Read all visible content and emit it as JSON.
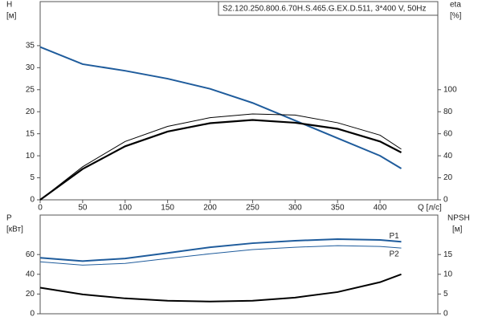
{
  "chart_data": [
    {
      "type": "line",
      "title": "S2.120.250.800.6.70H.S.465.G.EX.D.511, 3*400 V, 50Hz",
      "ylabel": [
        "H",
        "[м]"
      ],
      "y2label": [
        "eta",
        "[%]"
      ],
      "xlabel": "Q [л/с]",
      "x": [
        0,
        50,
        100,
        150,
        200,
        250,
        300,
        350,
        400,
        425
      ],
      "xlim": [
        0,
        468
      ],
      "xticks": [
        0,
        50,
        100,
        150,
        200,
        250,
        300,
        350,
        400
      ],
      "ylim": [
        0,
        45
      ],
      "yticks": [
        0,
        5,
        10,
        15,
        20,
        25,
        30,
        35
      ],
      "y2lim": [
        0,
        180
      ],
      "y2ticks": [
        0,
        20,
        40,
        60,
        80,
        100
      ],
      "series": [
        {
          "color": "#1f5c9c",
          "width": 2,
          "values": [
            34.7,
            30.8,
            29.3,
            27.5,
            25.2,
            22,
            18,
            14,
            10,
            7.1
          ]
        },
        {
          "color": "#000000",
          "width": 2.2,
          "axis": "y2",
          "values": [
            0,
            28,
            48.6,
            62,
            69.6,
            72.5,
            70,
            64.5,
            53,
            43
          ]
        },
        {
          "color": "#000000",
          "width": 1,
          "axis": "y2",
          "values": [
            0,
            30,
            53,
            66.7,
            74.6,
            78,
            77,
            70,
            58.7,
            46
          ]
        }
      ]
    },
    {
      "type": "line",
      "ylabel": [
        "P",
        "[кВт]"
      ],
      "y2label": [
        "NPSH",
        "[м]"
      ],
      "x": [
        0,
        50,
        100,
        150,
        200,
        250,
        300,
        350,
        400,
        425
      ],
      "xlim": [
        0,
        468
      ],
      "ylim": [
        0,
        100
      ],
      "yticks": [
        0,
        20,
        40,
        60
      ],
      "y2lim": [
        0,
        25
      ],
      "y2ticks": [
        0,
        5,
        10,
        15
      ],
      "series": [
        {
          "name": "P1",
          "color": "#1f5c9c",
          "width": 2,
          "values": [
            56.7,
            53.4,
            56,
            61.6,
            67.4,
            71.5,
            74,
            75.6,
            74.8,
            73
          ]
        },
        {
          "name": "P2",
          "color": "#1f5c9c",
          "width": 1,
          "values": [
            52.6,
            49.3,
            51,
            56,
            60.8,
            65,
            67.4,
            69,
            68.2,
            66.6
          ]
        },
        {
          "color": "#000000",
          "width": 2,
          "axis": "y2",
          "values": [
            6.6,
            4.9,
            3.9,
            3.3,
            3.1,
            3.3,
            4.1,
            5.5,
            8,
            10
          ]
        }
      ]
    }
  ]
}
